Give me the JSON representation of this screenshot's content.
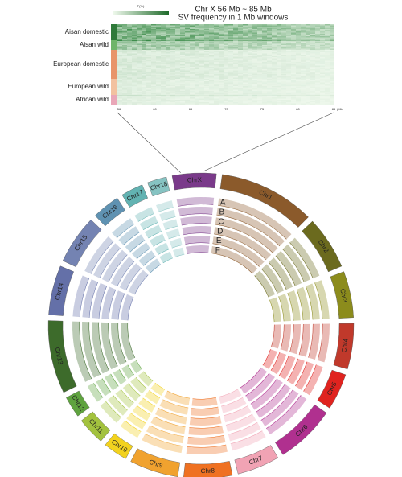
{
  "heatmap": {
    "title": "Chr X 56 Mb ~ 85 Mb",
    "subtitle": "SV frequency in 1 Mb windows",
    "colorbar_label": "F(%)",
    "x_unit": "(Mb)",
    "xticks": [
      "56",
      "60",
      "65",
      "70",
      "75",
      "80",
      "85"
    ],
    "groups": [
      {
        "label": "Aisan domestic",
        "color": "#2f7a3a"
      },
      {
        "label": "Aisan wild",
        "color": "#6fb56a"
      },
      {
        "label": "European domestic",
        "color": "#e8956a"
      },
      {
        "label": "European wild",
        "color": "#f2c2a0"
      },
      {
        "label": "African wild",
        "color": "#e9a7b8"
      }
    ]
  },
  "circos": {
    "tracks": [
      "A",
      "B",
      "C",
      "D",
      "E",
      "F"
    ],
    "chromosomes": [
      {
        "label": "Chr1",
        "length": 274,
        "color": "#8b5a2b"
      },
      {
        "label": "Chr2",
        "length": 151,
        "color": "#6b6a1e"
      },
      {
        "label": "Chr3",
        "length": 132,
        "color": "#8c8c1c"
      },
      {
        "label": "Chr4",
        "length": 130,
        "color": "#c0392b"
      },
      {
        "label": "Chr5",
        "length": 104,
        "color": "#e0231f"
      },
      {
        "label": "Chr6",
        "length": 170,
        "color": "#b0308f"
      },
      {
        "label": "Chr7",
        "length": 121,
        "color": "#f1a3b4"
      },
      {
        "label": "Chr8",
        "length": 138,
        "color": "#ef7122"
      },
      {
        "label": "Chr9",
        "length": 139,
        "color": "#f0a22f"
      },
      {
        "label": "Chr10",
        "length": 69,
        "color": "#f2d21f"
      },
      {
        "label": "Chr11",
        "length": 79,
        "color": "#a3c23e"
      },
      {
        "label": "Chr12",
        "length": 61,
        "color": "#5fa33f"
      },
      {
        "label": "Chr13",
        "length": 208,
        "color": "#3d6b2b"
      },
      {
        "label": "Chr14",
        "length": 141,
        "color": "#6470a8"
      },
      {
        "label": "Chr15",
        "length": 140,
        "color": "#7483b2"
      },
      {
        "label": "Chr16",
        "length": 79,
        "color": "#5f92b2"
      },
      {
        "label": "Chr17",
        "length": 63,
        "color": "#62b3b2"
      },
      {
        "label": "Chr18",
        "length": 55,
        "color": "#86c3c2"
      },
      {
        "label": "ChrX",
        "length": 125,
        "color": "#7a3a8a"
      }
    ]
  }
}
